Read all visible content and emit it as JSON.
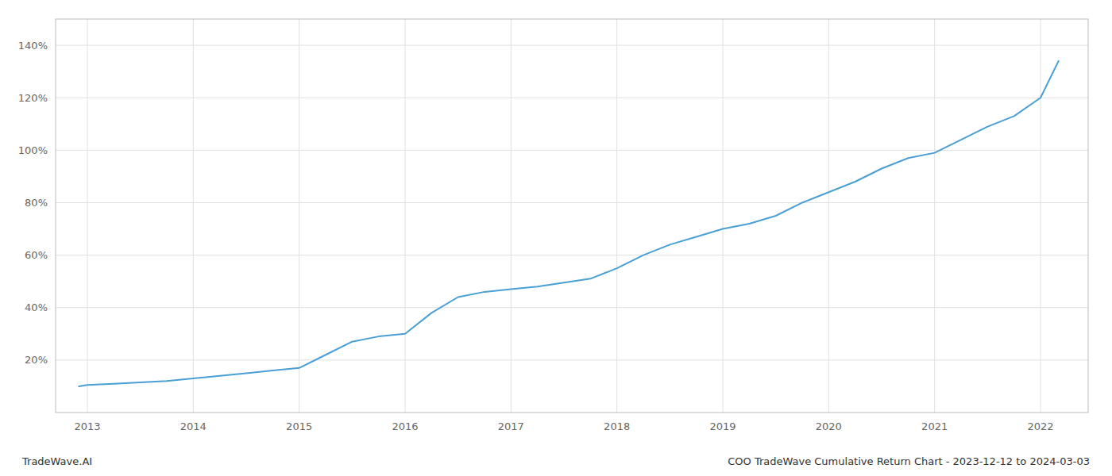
{
  "chart_data": {
    "type": "line",
    "title": "COO TradeWave Cumulative Return Chart - 2023-12-12 to 2024-03-03",
    "subtitle": "TradeWave.AI",
    "color": "#4a9fd4",
    "grid": true,
    "x": [
      2012.92,
      2013.0,
      2013.25,
      2013.5,
      2013.75,
      2014.0,
      2014.25,
      2014.5,
      2014.75,
      2015.0,
      2015.25,
      2015.5,
      2015.75,
      2016.0,
      2016.25,
      2016.5,
      2016.75,
      2017.0,
      2017.25,
      2017.5,
      2017.75,
      2018.0,
      2018.25,
      2018.5,
      2018.75,
      2019.0,
      2019.25,
      2019.5,
      2019.75,
      2020.0,
      2020.25,
      2020.5,
      2020.75,
      2021.0,
      2021.25,
      2021.5,
      2021.75,
      2022.0,
      2022.17
    ],
    "values": [
      10,
      10.5,
      11,
      11.5,
      12,
      13,
      14,
      15,
      16,
      17,
      22,
      27,
      29,
      30,
      38,
      44,
      46,
      47,
      48,
      49.5,
      51,
      55,
      60,
      64,
      67,
      70,
      72,
      75,
      80,
      84,
      88,
      93,
      97,
      99,
      104,
      109,
      113,
      120,
      134
    ],
    "xlim": [
      2012.7,
      2022.45
    ],
    "ylim": [
      0,
      150
    ],
    "xticks": [
      2013,
      2014,
      2015,
      2016,
      2017,
      2018,
      2019,
      2020,
      2021,
      2022
    ],
    "yticks": [
      {
        "value": 20,
        "label": "20%"
      },
      {
        "value": 40,
        "label": "40%"
      },
      {
        "value": 60,
        "label": "60%"
      },
      {
        "value": 80,
        "label": "80%"
      },
      {
        "value": 100,
        "label": "100%"
      },
      {
        "value": 120,
        "label": "120%"
      },
      {
        "value": 140,
        "label": "140%"
      }
    ]
  }
}
